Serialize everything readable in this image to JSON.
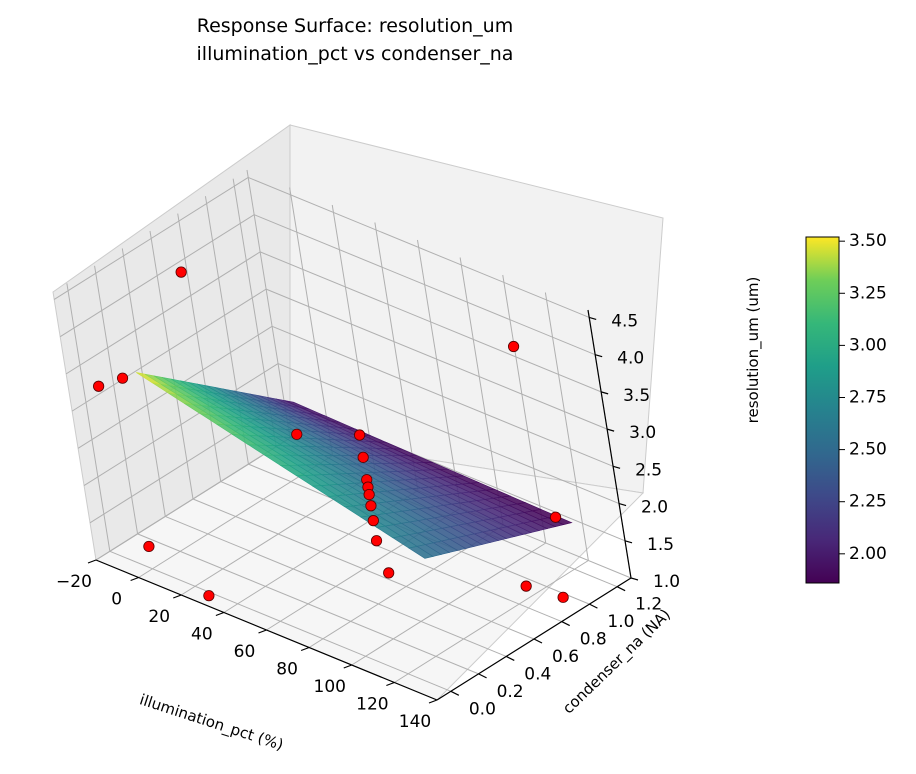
{
  "chart_data": {
    "type": "surface3d",
    "title": "Response Surface: resolution_um",
    "subtitle": "illumination_pct vs condenser_na",
    "xlabel": "illumination_pct (%)",
    "ylabel": "condenser_na (NA)",
    "zlabel": "resolution_um (um)",
    "xlim": [
      -20,
      140
    ],
    "ylim": [
      -0.1,
      1.3
    ],
    "zlim": [
      1.0,
      4.6
    ],
    "x_ticks": [
      "−20",
      "0",
      "20",
      "40",
      "60",
      "80",
      "100",
      "120",
      "140"
    ],
    "y_ticks": [
      "0.0",
      "0.2",
      "0.4",
      "0.6",
      "0.8",
      "1.0",
      "1.2"
    ],
    "z_ticks": [
      "1.0",
      "1.5",
      "2.0",
      "2.5",
      "3.0",
      "3.5",
      "4.0",
      "4.5"
    ],
    "colorbar_ticks": [
      "2.00",
      "2.25",
      "2.50",
      "2.75",
      "3.00",
      "3.25",
      "3.50"
    ],
    "colormap": "viridis",
    "colorbar_range": [
      1.86,
      3.52
    ],
    "surface": {
      "x": [
        0,
        130
      ],
      "y": [
        0.1,
        1.1
      ],
      "corners": {
        "x0_y0": 3.52,
        "x1_y0": 2.55,
        "x0_y1": 1.95,
        "x1_y1": 1.86
      }
    },
    "points_color": "#ff0000",
    "points": [
      {
        "x": 0,
        "y": 0.5,
        "z": 4.4
      },
      {
        "x": 115,
        "y": 1.1,
        "z": 4.05
      },
      {
        "x": -20,
        "y": 0.1,
        "z": 3.1
      },
      {
        "x": -15,
        "y": 0.2,
        "z": 3.15
      },
      {
        "x": 65,
        "y": 0.65,
        "z": 2.8
      },
      {
        "x": 45,
        "y": 0.5,
        "z": 2.75
      },
      {
        "x": 65,
        "y": 0.65,
        "z": 2.5
      },
      {
        "x": 65,
        "y": 0.65,
        "z": 2.2
      },
      {
        "x": 65,
        "y": 0.65,
        "z": 2.1
      },
      {
        "x": 65,
        "y": 0.65,
        "z": 2.0
      },
      {
        "x": 65,
        "y": 0.65,
        "z": 1.85
      },
      {
        "x": 65,
        "y": 0.65,
        "z": 1.65
      },
      {
        "x": 65,
        "y": 0.65,
        "z": 1.38
      },
      {
        "x": 130,
        "y": 1.0,
        "z": 2.05
      },
      {
        "x": 125,
        "y": 0.8,
        "z": 1.3
      },
      {
        "x": 135,
        "y": 0.9,
        "z": 1.15
      },
      {
        "x": 0,
        "y": 0.0,
        "z": 1.3
      },
      {
        "x": 80,
        "y": 0.5,
        "z": 1.3
      },
      {
        "x": 30,
        "y": -0.05,
        "z": 1.05
      }
    ]
  }
}
